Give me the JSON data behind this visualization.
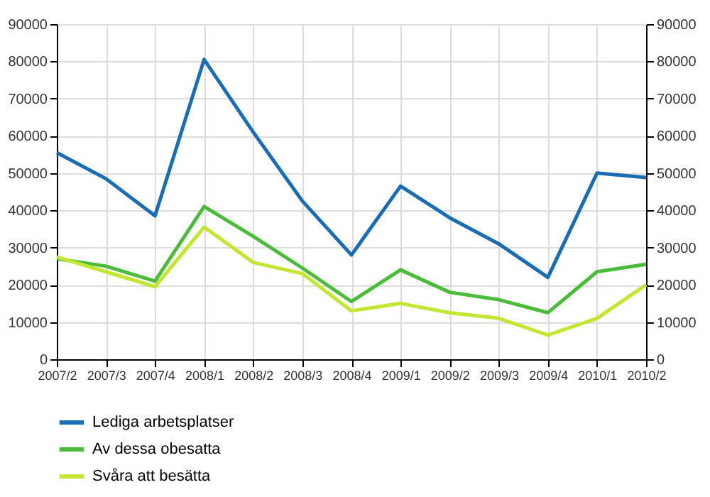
{
  "chart_data": {
    "type": "line",
    "categories": [
      "2007/2",
      "2007/3",
      "2007/4",
      "2008/1",
      "2008/2",
      "2008/3",
      "2008/4",
      "2009/1",
      "2009/2",
      "2009/3",
      "2009/4",
      "2010/1",
      "2010/2"
    ],
    "series": [
      {
        "name": "Lediga arbetsplatser",
        "color": "#1b6cb3",
        "values": [
          55500,
          48500,
          38500,
          80500,
          61000,
          42500,
          28000,
          46500,
          38000,
          31000,
          22000,
          50000,
          48800
        ]
      },
      {
        "name": "Av dessa obesatta",
        "color": "#4cbb3c",
        "values": [
          27000,
          25000,
          21000,
          41000,
          33000,
          24500,
          15500,
          24000,
          18000,
          16000,
          12500,
          23500,
          25500
        ]
      },
      {
        "name": "Svåra att besätta",
        "color": "#c2e634",
        "values": [
          27500,
          23500,
          19500,
          35500,
          26000,
          23000,
          13000,
          15000,
          12500,
          11000,
          6500,
          11000,
          20000
        ]
      }
    ],
    "ylim": [
      0,
      90000
    ],
    "yticks": [
      0,
      10000,
      20000,
      30000,
      40000,
      50000,
      60000,
      70000,
      80000,
      90000
    ],
    "y2lim": [
      0,
      90000
    ],
    "y2ticks": [
      0,
      10000,
      20000,
      30000,
      40000,
      50000,
      60000,
      70000,
      80000,
      90000
    ],
    "grid": true,
    "legend": "bottom",
    "line_style": "solid"
  }
}
